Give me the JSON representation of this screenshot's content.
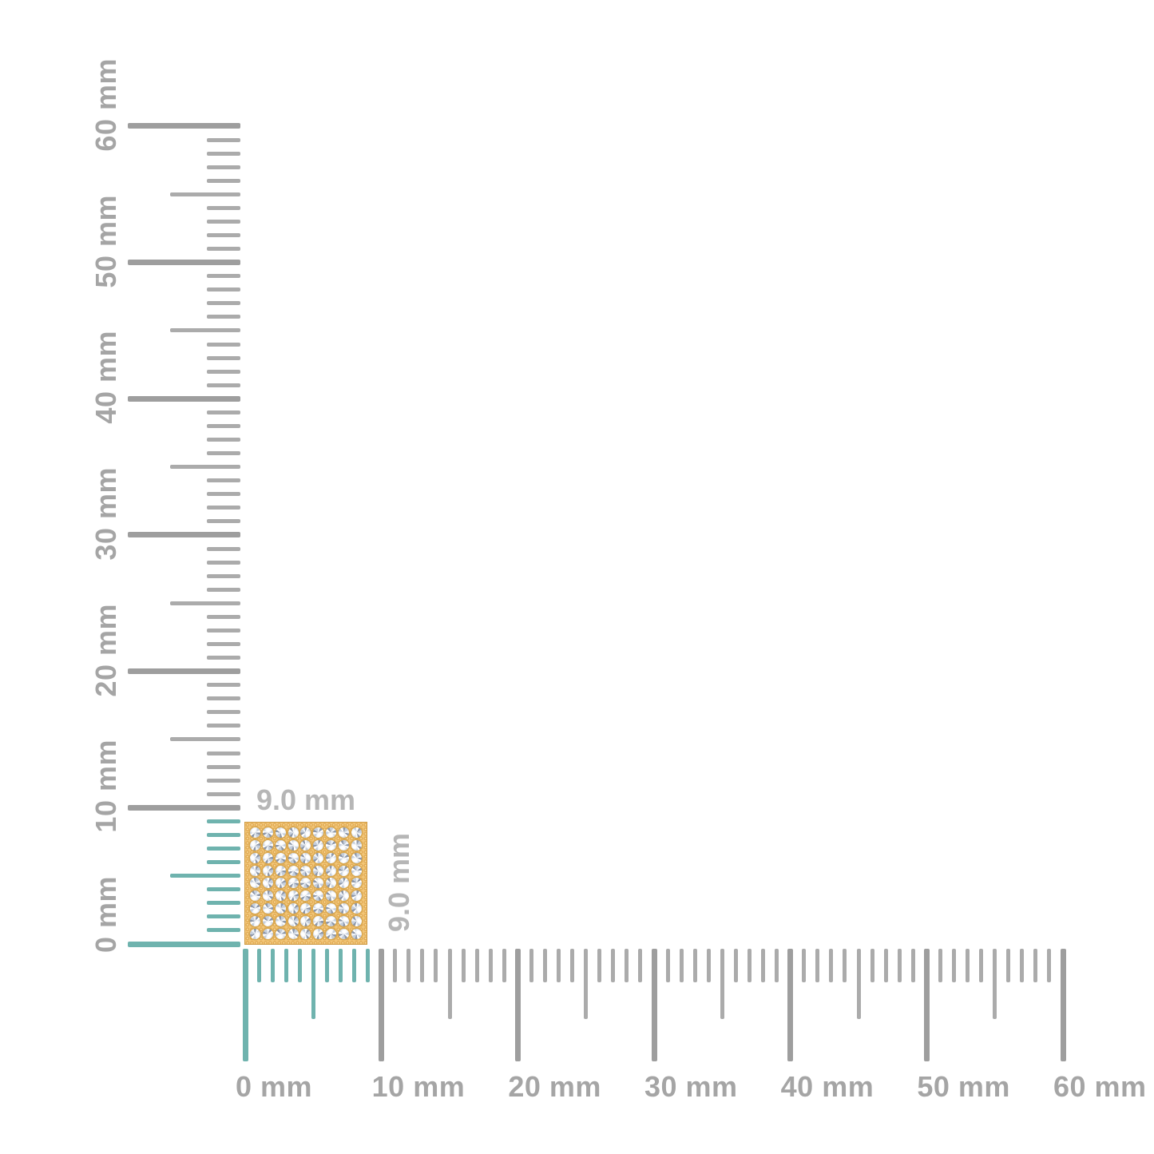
{
  "unit": "mm",
  "rulers": {
    "vertical": {
      "min_mm": 0,
      "max_mm": 60,
      "tick_step_mm": 1,
      "medium_every_mm": 5,
      "major_every_mm": 10,
      "highlight_from_mm": 0,
      "highlight_to_mm": 9,
      "labels": [
        {
          "mm": 0,
          "text": "0 mm"
        },
        {
          "mm": 10,
          "text": "10 mm"
        },
        {
          "mm": 20,
          "text": "20 mm"
        },
        {
          "mm": 30,
          "text": "30 mm"
        },
        {
          "mm": 40,
          "text": "40 mm"
        },
        {
          "mm": 50,
          "text": "50 mm"
        },
        {
          "mm": 60,
          "text": "60 mm"
        }
      ]
    },
    "horizontal": {
      "min_mm": 0,
      "max_mm": 60,
      "tick_step_mm": 1,
      "medium_every_mm": 5,
      "major_every_mm": 10,
      "highlight_from_mm": 0,
      "highlight_to_mm": 9,
      "labels": [
        {
          "mm": 0,
          "text": "0 mm"
        },
        {
          "mm": 10,
          "text": "10 mm"
        },
        {
          "mm": 20,
          "text": "20 mm"
        },
        {
          "mm": 30,
          "text": "30 mm"
        },
        {
          "mm": 40,
          "text": "40 mm"
        },
        {
          "mm": 50,
          "text": "50 mm"
        },
        {
          "mm": 60,
          "text": "60 mm"
        }
      ]
    }
  },
  "object": {
    "type": "gold-diamond-pave-square",
    "width_label": "9.0 mm",
    "height_label": "9.0 mm",
    "width_mm": 9.0,
    "height_mm": 9.0,
    "grid_rows": 9,
    "grid_cols": 9
  },
  "colors": {
    "highlight_teal": "#6fb3ae",
    "tick_gray": "#ababab",
    "tick_major_gray": "#9e9e9e",
    "axis_label_gray": "#a5a5a5",
    "dimension_label_gray": "#b6b6b6",
    "gold_base": "#f2c678",
    "gold_bead": "#e2ab55",
    "gold_border": "#cf9b45",
    "gold_bezel": "#d9a74e",
    "stone_light": "#eef2f7",
    "stone_mid": "#c4cedc",
    "stone_dark": "#8d97a9"
  }
}
